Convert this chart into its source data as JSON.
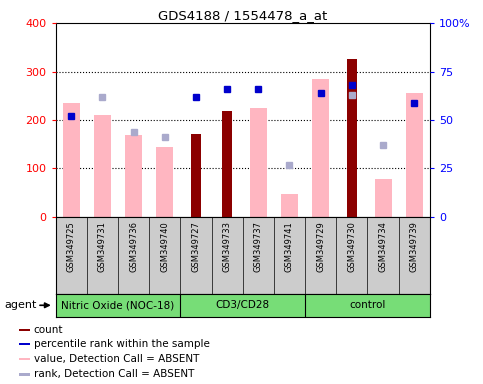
{
  "title": "GDS4188 / 1554478_a_at",
  "samples": [
    "GSM349725",
    "GSM349731",
    "GSM349736",
    "GSM349740",
    "GSM349727",
    "GSM349733",
    "GSM349737",
    "GSM349741",
    "GSM349729",
    "GSM349730",
    "GSM349734",
    "GSM349739"
  ],
  "groups": [
    {
      "label": "Nitric Oxide (NOC-18)",
      "start": 0,
      "end": 4
    },
    {
      "label": "CD3/CD28",
      "start": 4,
      "end": 8
    },
    {
      "label": "control",
      "start": 8,
      "end": 12
    }
  ],
  "count_values": [
    null,
    null,
    null,
    null,
    172,
    218,
    null,
    null,
    null,
    325,
    null,
    null
  ],
  "percentile_rank_pct": [
    52,
    null,
    null,
    null,
    62,
    66,
    66,
    null,
    64,
    68,
    null,
    59
  ],
  "value_absent": [
    235,
    210,
    170,
    145,
    null,
    null,
    225,
    47,
    285,
    null,
    78,
    256
  ],
  "rank_absent_pct": [
    null,
    62,
    44,
    41,
    null,
    null,
    null,
    27,
    null,
    63,
    37,
    null
  ],
  "ylim_left": [
    0,
    400
  ],
  "ylim_right": [
    0,
    100
  ],
  "yticks_left": [
    0,
    100,
    200,
    300,
    400
  ],
  "yticks_right": [
    0,
    25,
    50,
    75,
    100
  ],
  "ytick_right_labels": [
    "0",
    "25",
    "50",
    "75",
    "100%"
  ],
  "count_color": "#8B0000",
  "percentile_color": "#0000CC",
  "value_absent_color": "#FFB6C1",
  "rank_absent_color": "#AAAACC",
  "legend_items": [
    {
      "color": "#8B0000",
      "label": "count"
    },
    {
      "color": "#0000CC",
      "label": "percentile rank within the sample"
    },
    {
      "color": "#FFB6C1",
      "label": "value, Detection Call = ABSENT"
    },
    {
      "color": "#AAAACC",
      "label": "rank, Detection Call = ABSENT"
    }
  ]
}
